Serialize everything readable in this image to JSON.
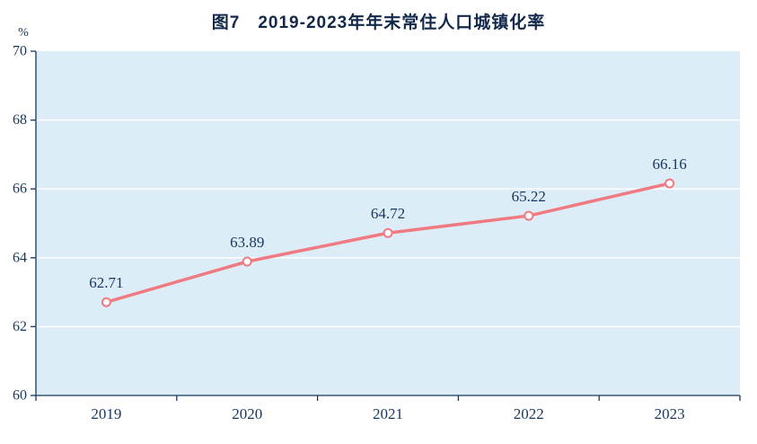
{
  "chart_data": {
    "type": "line",
    "title": "图7　2019-2023年年末常住人口城镇化率",
    "ylabel": "%",
    "categories": [
      "2019",
      "2020",
      "2021",
      "2022",
      "2023"
    ],
    "series": [
      {
        "name": "年末常住人口城镇化率",
        "values": [
          62.71,
          63.89,
          64.72,
          65.22,
          66.16
        ]
      }
    ],
    "point_labels": [
      "62.71",
      "63.89",
      "64.72",
      "65.22",
      "66.16"
    ],
    "ylim": [
      60,
      70
    ],
    "y_ticks": [
      60,
      62,
      64,
      66,
      68,
      70
    ],
    "grid": true,
    "legend_position": "none",
    "colors": {
      "line": "#ef7a82",
      "marker_fill": "#ffffff",
      "plot_bg": "#ddedf8",
      "grid": "#ffffff",
      "axis": "#17375e",
      "text": "#17375e",
      "title": "#13294b"
    }
  }
}
